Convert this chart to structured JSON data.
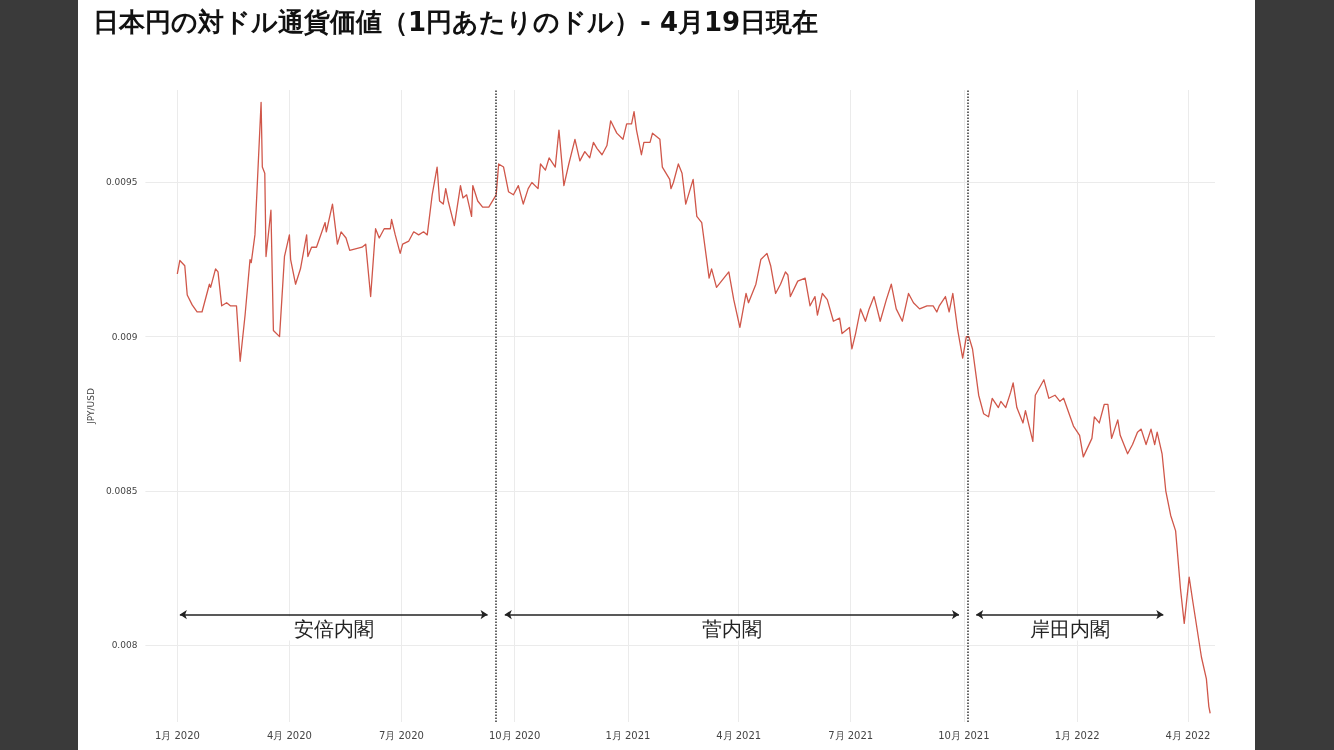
{
  "chart_data": {
    "type": "line",
    "title": "日本円の対ドル通貨価値（1円あたりのドル）- 4月19日現在",
    "ylabel": "JPY/USD",
    "annotations": [
      "安倍内閣",
      "菅内閣",
      "岸田内閣"
    ],
    "xlim": [
      "2019-12-06",
      "2022-04-23"
    ],
    "ylim": [
      0.00775,
      0.0098
    ],
    "xticks": [
      {
        "value": "2020-01-01",
        "label": "1月 2020"
      },
      {
        "value": "2020-04-01",
        "label": "4月 2020"
      },
      {
        "value": "2020-07-01",
        "label": "7月 2020"
      },
      {
        "value": "2020-10-01",
        "label": "10月 2020"
      },
      {
        "value": "2021-01-01",
        "label": "1月 2021"
      },
      {
        "value": "2021-04-01",
        "label": "4月 2021"
      },
      {
        "value": "2021-07-01",
        "label": "7月 2021"
      },
      {
        "value": "2021-10-01",
        "label": "10月 2021"
      },
      {
        "value": "2022-01-01",
        "label": "1月 2022"
      },
      {
        "value": "2022-04-01",
        "label": "4月 2022"
      }
    ],
    "yticks": [
      0.008,
      0.0085,
      0.009,
      0.0095
    ],
    "grid": true,
    "marker": "none",
    "line_style": "solid",
    "ref_lines": [
      {
        "axis": "x",
        "value": "2020-09-16",
        "color": "#333333",
        "line_style": "dotted"
      },
      {
        "axis": "x",
        "value": "2021-10-04",
        "color": "#333333",
        "line_style": "dotted"
      }
    ],
    "x": [
      "2020-01-01",
      "2020-01-03",
      "2020-01-07",
      "2020-01-09",
      "2020-01-13",
      "2020-01-17",
      "2020-01-21",
      "2020-01-27",
      "2020-01-28",
      "2020-02-01",
      "2020-02-03",
      "2020-02-06",
      "2020-02-10",
      "2020-02-13",
      "2020-02-18",
      "2020-02-21",
      "2020-02-25",
      "2020-02-29",
      "2020-03-01",
      "2020-03-04",
      "2020-03-09",
      "2020-03-10",
      "2020-03-12",
      "2020-03-13",
      "2020-03-17",
      "2020-03-19",
      "2020-03-24",
      "2020-03-28",
      "2020-04-01",
      "2020-04-02",
      "2020-04-06",
      "2020-04-10",
      "2020-04-15",
      "2020-04-16",
      "2020-04-19",
      "2020-04-23",
      "2020-04-30",
      "2020-05-01",
      "2020-05-06",
      "2020-05-10",
      "2020-05-13",
      "2020-05-17",
      "2020-05-20",
      "2020-05-30",
      "2020-06-02",
      "2020-06-06",
      "2020-06-10",
      "2020-06-13",
      "2020-06-17",
      "2020-06-22",
      "2020-06-23",
      "2020-06-26",
      "2020-06-30",
      "2020-07-02",
      "2020-07-07",
      "2020-07-11",
      "2020-07-15",
      "2020-07-19",
      "2020-07-22",
      "2020-07-26",
      "2020-07-30",
      "2020-08-01",
      "2020-08-04",
      "2020-08-06",
      "2020-08-08",
      "2020-08-13",
      "2020-08-18",
      "2020-08-20",
      "2020-08-23",
      "2020-08-27",
      "2020-08-28",
      "2020-09-01",
      "2020-09-05",
      "2020-09-10",
      "2020-09-16",
      "2020-09-18",
      "2020-09-22",
      "2020-09-26",
      "2020-09-30",
      "2020-10-04",
      "2020-10-08",
      "2020-10-12",
      "2020-10-15",
      "2020-10-20",
      "2020-10-22",
      "2020-10-26",
      "2020-10-29",
      "2020-11-03",
      "2020-11-06",
      "2020-11-10",
      "2020-11-14",
      "2020-11-19",
      "2020-11-23",
      "2020-11-27",
      "2020-12-01",
      "2020-12-04",
      "2020-12-07",
      "2020-12-11",
      "2020-12-15",
      "2020-12-18",
      "2020-12-23",
      "2020-12-28",
      "2020-12-31",
      "2021-01-04",
      "2021-01-06",
      "2021-01-08",
      "2021-01-12",
      "2021-01-14",
      "2021-01-19",
      "2021-01-21",
      "2021-01-27",
      "2021-01-29",
      "2021-02-04",
      "2021-02-05",
      "2021-02-07",
      "2021-02-11",
      "2021-02-14",
      "2021-02-17",
      "2021-02-23",
      "2021-02-26",
      "2021-03-02",
      "2021-03-08",
      "2021-03-10",
      "2021-03-14",
      "2021-03-24",
      "2021-03-28",
      "2021-04-02",
      "2021-04-07",
      "2021-04-09",
      "2021-04-15",
      "2021-04-19",
      "2021-04-24",
      "2021-04-27",
      "2021-05-01",
      "2021-05-05",
      "2021-05-09",
      "2021-05-11",
      "2021-05-13",
      "2021-05-19",
      "2021-05-25",
      "2021-05-29",
      "2021-06-02",
      "2021-06-04",
      "2021-06-08",
      "2021-06-12",
      "2021-06-17",
      "2021-06-22",
      "2021-06-24",
      "2021-06-30",
      "2021-07-02",
      "2021-07-05",
      "2021-07-09",
      "2021-07-13",
      "2021-07-16",
      "2021-07-20",
      "2021-07-25",
      "2021-07-30",
      "2021-08-03",
      "2021-08-07",
      "2021-08-12",
      "2021-08-17",
      "2021-08-21",
      "2021-08-26",
      "2021-09-01",
      "2021-09-06",
      "2021-09-09",
      "2021-09-11",
      "2021-09-16",
      "2021-09-19",
      "2021-09-22",
      "2021-09-26",
      "2021-09-30",
      "2021-10-03",
      "2021-10-05",
      "2021-10-08",
      "2021-10-13",
      "2021-10-17",
      "2021-10-21",
      "2021-10-24",
      "2021-10-29",
      "2021-10-31",
      "2021-11-04",
      "2021-11-08",
      "2021-11-10",
      "2021-11-13",
      "2021-11-18",
      "2021-11-20",
      "2021-11-26",
      "2021-11-28",
      "2021-12-05",
      "2021-12-09",
      "2021-12-14",
      "2021-12-18",
      "2021-12-21",
      "2021-12-29",
      "2022-01-03",
      "2022-01-06",
      "2022-01-13",
      "2022-01-15",
      "2022-01-19",
      "2022-01-23",
      "2022-01-26",
      "2022-01-29",
      "2022-02-03",
      "2022-02-05",
      "2022-02-11",
      "2022-02-15",
      "2022-02-19",
      "2022-02-22",
      "2022-02-26",
      "2022-03-02",
      "2022-03-05",
      "2022-03-07",
      "2022-03-11",
      "2022-03-14",
      "2022-03-18",
      "2022-03-22",
      "2022-03-26",
      "2022-03-29",
      "2022-04-02",
      "2022-04-05",
      "2022-04-12",
      "2022-04-16",
      "2022-04-18",
      "2022-04-19"
    ],
    "series": [
      {
        "color": "#d0574a",
        "values": [
          0.009205,
          0.009247,
          0.00923,
          0.009135,
          0.009103,
          0.00908,
          0.00908,
          0.00917,
          0.00916,
          0.00922,
          0.00921,
          0.0091,
          0.00911,
          0.0091,
          0.0091,
          0.00892,
          0.00907,
          0.00925,
          0.00924,
          0.00933,
          0.00976,
          0.00955,
          0.00953,
          0.00926,
          0.00941,
          0.00902,
          0.009,
          0.00926,
          0.00933,
          0.00925,
          0.00917,
          0.00922,
          0.00933,
          0.00926,
          0.00929,
          0.00929,
          0.00937,
          0.00934,
          0.00943,
          0.0093,
          0.00934,
          0.00932,
          0.00928,
          0.00929,
          0.0093,
          0.00913,
          0.00935,
          0.00932,
          0.00935,
          0.00935,
          0.00938,
          0.00933,
          0.00927,
          0.0093,
          0.00931,
          0.00934,
          0.00933,
          0.00934,
          0.00933,
          0.00946,
          0.00955,
          0.00944,
          0.00943,
          0.00948,
          0.00944,
          0.00936,
          0.00949,
          0.00945,
          0.00946,
          0.00939,
          0.00949,
          0.00944,
          0.00942,
          0.00942,
          0.00946,
          0.00956,
          0.00955,
          0.00947,
          0.00946,
          0.00949,
          0.00943,
          0.00948,
          0.0095,
          0.00948,
          0.00956,
          0.00954,
          0.00958,
          0.00955,
          0.00967,
          0.00949,
          0.00956,
          0.00964,
          0.00957,
          0.0096,
          0.00958,
          0.00963,
          0.00961,
          0.00959,
          0.00962,
          0.0097,
          0.00966,
          0.00964,
          0.00969,
          0.00969,
          0.00973,
          0.00967,
          0.00959,
          0.00963,
          0.00963,
          0.00966,
          0.00964,
          0.00955,
          0.00951,
          0.00948,
          0.0095,
          0.00956,
          0.00953,
          0.00943,
          0.00951,
          0.00939,
          0.00937,
          0.00919,
          0.00922,
          0.00916,
          0.00921,
          0.00912,
          0.00903,
          0.00914,
          0.00911,
          0.00917,
          0.00925,
          0.00927,
          0.00923,
          0.00914,
          0.00917,
          0.00921,
          0.0092,
          0.00913,
          0.00918,
          0.00919,
          0.0091,
          0.00913,
          0.00907,
          0.00914,
          0.00912,
          0.00905,
          0.00906,
          0.00901,
          0.00903,
          0.00896,
          0.00901,
          0.00909,
          0.00905,
          0.00909,
          0.00913,
          0.00905,
          0.00912,
          0.00917,
          0.00909,
          0.00905,
          0.00914,
          0.00911,
          0.00909,
          0.0091,
          0.0091,
          0.00908,
          0.0091,
          0.00913,
          0.00908,
          0.00914,
          0.00902,
          0.00893,
          0.009,
          0.009,
          0.00896,
          0.00881,
          0.00875,
          0.00874,
          0.0088,
          0.00877,
          0.00879,
          0.00877,
          0.00882,
          0.00885,
          0.00877,
          0.00872,
          0.00876,
          0.00866,
          0.00881,
          0.00886,
          0.0088,
          0.00881,
          0.00879,
          0.0088,
          0.00871,
          0.00868,
          0.00861,
          0.00867,
          0.00874,
          0.00872,
          0.00878,
          0.00878,
          0.00867,
          0.00873,
          0.00868,
          0.00862,
          0.00865,
          0.00869,
          0.0087,
          0.00865,
          0.0087,
          0.00865,
          0.00869,
          0.00862,
          0.0085,
          0.00842,
          0.00837,
          0.00818,
          0.00807,
          0.00822,
          0.00814,
          0.00796,
          0.00789,
          0.0078,
          0.00778
        ]
      }
    ]
  }
}
